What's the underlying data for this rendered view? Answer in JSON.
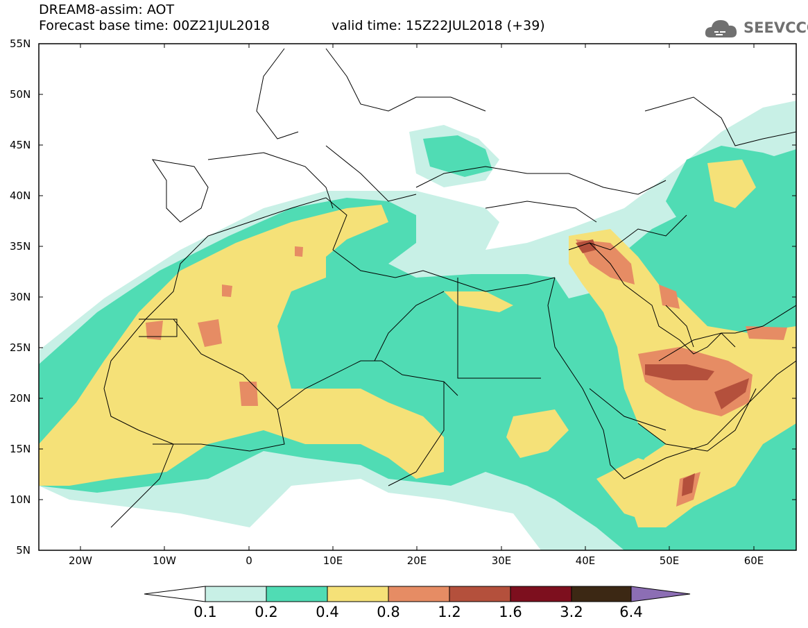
{
  "header": {
    "title_line1": "DREAM8-assim: AOT",
    "title_line2_left": "Forecast base time: 00Z21JUL2018",
    "title_line2_right": "valid time: 15Z22JUL2018 (+39)",
    "logo_text": "SEEVCCC"
  },
  "map": {
    "lat_labels": [
      "55N",
      "50N",
      "45N",
      "40N",
      "35N",
      "30N",
      "25N",
      "20N",
      "15N",
      "10N",
      "5N"
    ],
    "lon_labels": [
      "20W",
      "10W",
      "0",
      "10E",
      "20E",
      "30E",
      "40E",
      "50E",
      "60E"
    ],
    "lat_range": [
      5,
      55
    ],
    "lon_range": [
      -25,
      65
    ],
    "variable": "AOT"
  },
  "colorbar": {
    "labels": [
      "0.1",
      "0.2",
      "0.4",
      "0.8",
      "1.2",
      "1.6",
      "3.2",
      "6.4"
    ],
    "colors": [
      "#c8f0e6",
      "#50dcb4",
      "#f5e178",
      "#e68c64",
      "#b4503c",
      "#7d0f1e",
      "#3c2814",
      "#8c6eb4"
    ]
  }
}
